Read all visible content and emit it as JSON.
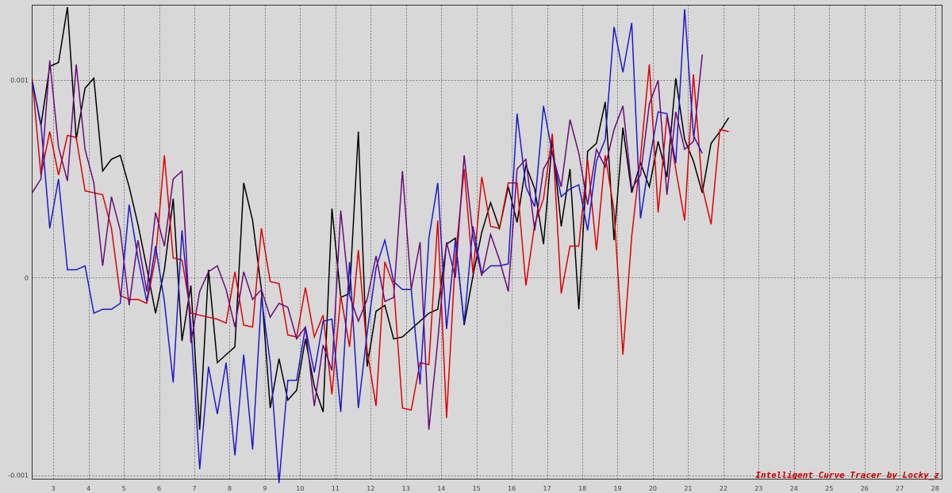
{
  "chart_data": {
    "type": "line",
    "title": "",
    "xlabel": "",
    "ylabel": "",
    "xlim": [
      2.4,
      28.2
    ],
    "ylim": [
      -0.00102,
      0.00138
    ],
    "grid": true,
    "x_ticks": [
      3,
      4,
      5,
      6,
      7,
      8,
      9,
      10,
      11,
      12,
      13,
      14,
      15,
      16,
      17,
      18,
      19,
      20,
      21,
      22,
      23,
      24,
      25,
      26,
      27,
      28
    ],
    "x_tick_labels": [
      "3",
      "4",
      "5",
      "6",
      "7",
      "8",
      "9",
      "10",
      "11",
      "12",
      "13",
      "14",
      "15",
      "16",
      "17",
      "18",
      "19",
      "20",
      "21",
      "22",
      "23",
      "24",
      "25",
      "26",
      "27",
      "28"
    ],
    "y_ticks": [
      0.001,
      0,
      -0.001
    ],
    "y_tick_labels": [
      "0.001",
      "0",
      "-0.001"
    ],
    "x_start": 2.4,
    "x_step": 0.25,
    "series": [
      {
        "color": "#000000",
        "values": [
          0.001,
          0.00077,
          0.00107,
          0.00109,
          0.00137,
          0.0007,
          0.00096,
          0.00101,
          0.00054,
          0.0006,
          0.00062,
          0.00046,
          0.00027,
          5e-05,
          -0.00018,
          4e-05,
          0.0004,
          -0.00032,
          -4e-05,
          -0.00077,
          4e-05,
          -0.00043,
          -0.00039,
          -0.00035,
          0.00048,
          0.00029,
          -6e-05,
          -0.00066,
          -0.00041,
          -0.00062,
          -0.00057,
          -0.00031,
          -0.00055,
          -0.00068,
          0.00035,
          -0.0001,
          -8e-05,
          0.00074,
          -0.00045,
          -0.00017,
          -0.00014,
          -0.00031,
          -0.0003,
          -0.00026,
          -0.00022,
          -0.00018,
          -0.00016,
          0.00017,
          0.0002,
          -0.00024,
          1e-05,
          0.00023,
          0.00038,
          0.00025,
          0.00046,
          0.00028,
          0.00057,
          0.00045,
          0.00017,
          0.0007,
          0.00026,
          0.00055,
          -0.00016,
          0.00064,
          0.00068,
          0.00089,
          0.00019,
          0.00076,
          0.00043,
          0.00058,
          0.00046,
          0.00069,
          0.00051,
          0.00101,
          0.0007,
          0.00059,
          0.00043,
          0.00068,
          0.00074,
          0.00081
        ]
      },
      {
        "color": "#e00000",
        "values": [
          0.00101,
          0.00052,
          0.00074,
          0.00052,
          0.00072,
          0.00071,
          0.00044,
          0.00043,
          0.00042,
          0.00025,
          -9e-05,
          -0.00011,
          -0.00011,
          -0.00013,
          0.0001,
          0.00062,
          0.0001,
          9e-05,
          -0.00018,
          -0.00019,
          -0.0002,
          -0.00021,
          -0.00023,
          3e-05,
          -0.00024,
          -0.00025,
          0.00025,
          -2e-05,
          -3e-05,
          -0.00029,
          -0.0003,
          -5e-05,
          -0.0003,
          -0.00019,
          -0.00059,
          -9e-05,
          -0.00035,
          0.00014,
          -0.00037,
          -0.00065,
          8e-05,
          -4e-05,
          -0.00066,
          -0.00067,
          -0.00043,
          -0.00044,
          0.00029,
          -0.00071,
          0.0001,
          0.00055,
          2e-05,
          0.00051,
          0.00026,
          0.00025,
          0.00048,
          0.00048,
          -4e-05,
          0.00027,
          0.0004,
          0.00073,
          -8e-05,
          0.00016,
          0.00016,
          0.0006,
          0.00014,
          0.00062,
          0.00034,
          -0.00039,
          0.00021,
          0.00061,
          0.00108,
          0.00033,
          0.00082,
          0.00055,
          0.00029,
          0.00103,
          0.00046,
          0.00027,
          0.00075,
          0.00074
        ]
      },
      {
        "color": "#1a1acc",
        "values": [
          0.00099,
          0.00078,
          0.00025,
          0.0005,
          4e-05,
          4e-05,
          6e-05,
          -0.00018,
          -0.00016,
          -0.00016,
          -0.00013,
          0.00037,
          0.0001,
          -0.00012,
          0.00016,
          -0.00012,
          -0.00053,
          0.00024,
          -0.00024,
          -0.00097,
          -0.00045,
          -0.00069,
          -0.00043,
          -0.0009,
          -0.00039,
          -0.00087,
          -0.0001,
          -0.00043,
          -0.00104,
          -0.00052,
          -0.00052,
          -0.00025,
          -0.00048,
          -0.00022,
          -0.00021,
          -0.00068,
          8e-05,
          -0.00066,
          -0.00028,
          5e-05,
          0.00019,
          -2e-05,
          -6e-05,
          -6e-05,
          -0.00054,
          0.0002,
          0.00048,
          -0.00026,
          0.00019,
          -0.00023,
          0.00026,
          2e-05,
          6e-05,
          6e-05,
          7e-05,
          0.00083,
          0.00046,
          0.00036,
          0.00087,
          0.00063,
          0.00041,
          0.00045,
          0.00047,
          0.00024,
          0.00059,
          0.0007,
          0.00127,
          0.00104,
          0.00129,
          0.0003,
          0.00059,
          0.00084,
          0.00083,
          0.00058,
          0.00136,
          0.00072,
          0.00063
        ]
      },
      {
        "color": "#6a0a78",
        "values": [
          0.00043,
          0.0005,
          0.0011,
          0.00066,
          0.00049,
          0.00108,
          0.00065,
          0.00048,
          6e-05,
          0.00041,
          0.00024,
          -0.00014,
          0.00019,
          -7e-05,
          0.00033,
          0.00016,
          0.0005,
          0.00054,
          -0.00033,
          -7e-05,
          3e-05,
          6e-05,
          -6e-05,
          -0.00025,
          3e-05,
          -0.00011,
          -6e-05,
          -0.0002,
          -0.00013,
          -0.00015,
          -0.00031,
          -0.00025,
          -0.00065,
          -0.00034,
          -0.00047,
          0.00034,
          -9e-05,
          -0.00022,
          -0.00011,
          0.00011,
          -0.00012,
          -0.0001,
          0.00054,
          -6e-05,
          0.00018,
          -0.00077,
          -0.00032,
          0.00018,
          0.0,
          0.00062,
          0.00021,
          1e-05,
          0.00022,
          9e-05,
          -7e-05,
          0.00055,
          0.0006,
          0.00024,
          0.00055,
          0.00063,
          0.00046,
          0.0008,
          0.00063,
          0.00037,
          0.00065,
          0.00056,
          0.00075,
          0.00087,
          0.00045,
          0.00052,
          0.00088,
          0.001,
          0.00042,
          0.00084,
          0.00065,
          0.00069,
          0.00113
        ]
      }
    ]
  },
  "watermark": {
    "text": "Intelligent Curve Tracer by Locky_z",
    "color": "#cc0000"
  }
}
